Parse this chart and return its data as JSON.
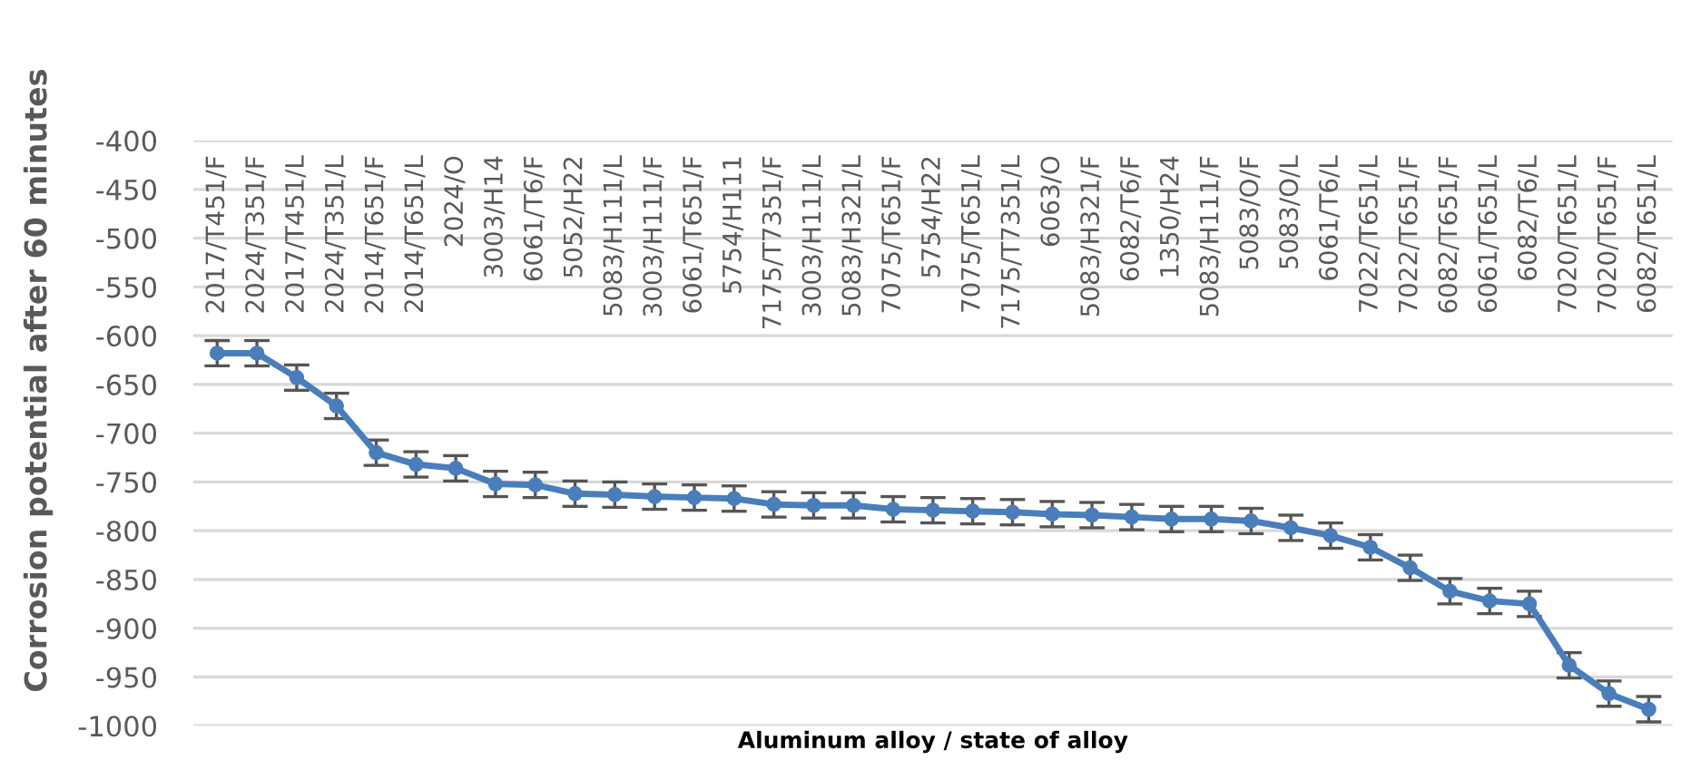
{
  "chart_data": {
    "type": "line",
    "ylabel": "Corrosion potential after 60 minutes",
    "xlabel": "Aluminum alloy / state of alloy",
    "categories": [
      "2017/T451/F",
      "2024/T351/F",
      "2017/T451/L",
      "2024/T351/L",
      "2014/T651/F",
      "2014/T651/L",
      "2024/O",
      "3003/H14",
      "6061/T6/F",
      "5052/H22",
      "5083/H111/L",
      "3003/H111/F",
      "6061/T651/F",
      "5754/H111",
      "7175/T7351/F",
      "3003/H111/L",
      "5083/H321/L",
      "7075/T651/F",
      "5754/H22",
      "7075/T651/L",
      "7175/T7351/L",
      "6063/O",
      "5083/H321/F",
      "6082/T6/F",
      "1350/H24",
      "5083/H111/F",
      "5083/O/F",
      "5083/O/L",
      "6061/T6/L",
      "7022/T651/L",
      "7022/T651/F",
      "6082/T651/F",
      "6061/T651/L",
      "6082/T6/L",
      "7020/T651/L",
      "7020/T651/F",
      "6082/T651/L"
    ],
    "series": [
      {
        "color": "#4a7ebb",
        "values": [
          -618,
          -618,
          -643,
          -672,
          -720,
          -732,
          -736,
          -752,
          -753,
          -762,
          -763,
          -765,
          -766,
          -767,
          -773,
          -774,
          -774,
          -778,
          -779,
          -780,
          -781,
          -783,
          -784,
          -786,
          -788,
          -788,
          -790,
          -797,
          -805,
          -817,
          -838,
          -862,
          -872,
          -875,
          -938,
          -967,
          -983
        ],
        "errors": [
          13,
          13,
          13,
          13,
          13,
          13,
          13,
          13,
          13,
          13,
          13,
          13,
          13,
          13,
          13,
          13,
          13,
          13,
          13,
          13,
          13,
          13,
          13,
          13,
          13,
          13,
          13,
          13,
          13,
          13,
          13,
          13,
          13,
          13,
          13,
          13,
          13
        ]
      }
    ],
    "ylim": [
      -1000,
      -400
    ],
    "yticks": [
      -1000,
      -950,
      -900,
      -850,
      -800,
      -750,
      -700,
      -650,
      -600,
      -550,
      -500,
      -450,
      -400
    ],
    "grid": "y",
    "marker": "circle",
    "line_style": "solid",
    "legend": false
  }
}
